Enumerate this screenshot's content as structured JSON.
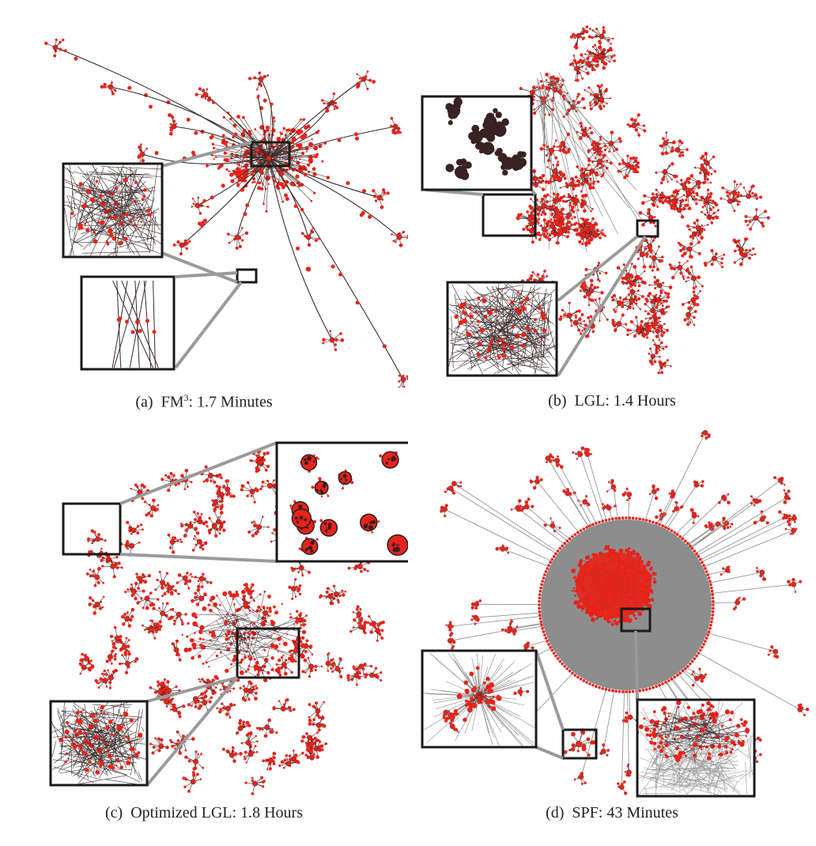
{
  "figure": {
    "panels": [
      {
        "id": "a",
        "tag": "(a)",
        "method": "FM",
        "superscript": "3",
        "time": ": 1.7 Minutes"
      },
      {
        "id": "b",
        "tag": "(b)",
        "method": "LGL",
        "superscript": "",
        "time": ": 1.4 Hours"
      },
      {
        "id": "c",
        "tag": "(c)",
        "method": "Optimized LGL",
        "superscript": "",
        "time": ": 1.8 Hours"
      },
      {
        "id": "d",
        "tag": "(d)",
        "method": "SPF",
        "superscript": "",
        "time": ": 43 Minutes"
      }
    ],
    "colors": {
      "node": "#e8231b",
      "edge": "#3a2a2a",
      "gray_edge": "#8a8a8a",
      "frame": "#1a1a1a"
    }
  }
}
